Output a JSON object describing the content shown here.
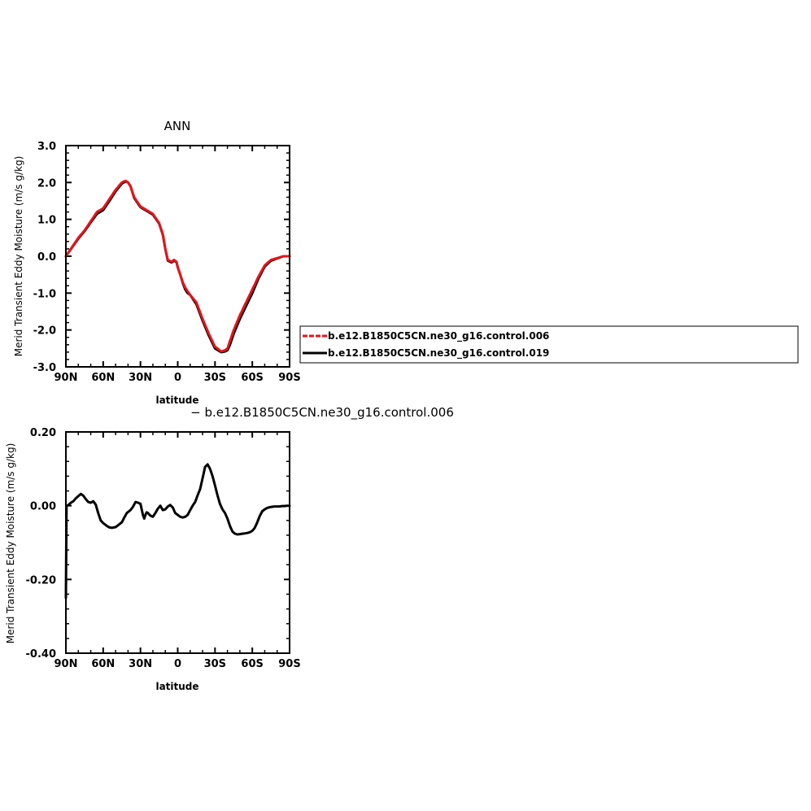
{
  "chart_data": [
    {
      "type": "line",
      "title": "ANN",
      "xlabel": "latitude",
      "ylabel": "Merid Transient Eddy Moisture (m/s g/kg)",
      "xlim": [
        -90,
        90
      ],
      "ylim": [
        -3.0,
        3.0
      ],
      "x_ticks": [
        "90N",
        "60N",
        "30N",
        "0",
        "30S",
        "60S",
        "90S"
      ],
      "y_ticks": [
        "3.0",
        "2.0",
        "1.0",
        "0.0",
        "-1.0",
        "-2.0",
        "-3.0"
      ],
      "y_tick_values": [
        3,
        2,
        1,
        0,
        -1,
        -2,
        -3
      ],
      "legend_position": "right",
      "series": [
        {
          "name": "b.e12.B1850C5CN.ne30_g16.control.006",
          "color": "#e8141b",
          "dash": true,
          "x": [
            -90,
            -85,
            -80,
            -75,
            -70,
            -65,
            -60,
            -55,
            -50,
            -45,
            -42,
            -40,
            -38,
            -35,
            -30,
            -25,
            -20,
            -15,
            -12,
            -10,
            -8,
            -5,
            -3,
            -1,
            0,
            2,
            4,
            6,
            8,
            10,
            15,
            20,
            25,
            30,
            35,
            38,
            40,
            42,
            45,
            50,
            55,
            60,
            65,
            70,
            75,
            80,
            85,
            90
          ],
          "y": [
            0.0,
            0.25,
            0.5,
            0.7,
            0.95,
            1.2,
            1.3,
            1.55,
            1.8,
            2.0,
            2.05,
            2.0,
            1.9,
            1.6,
            1.35,
            1.25,
            1.15,
            0.9,
            0.6,
            0.2,
            -0.1,
            -0.15,
            -0.1,
            -0.15,
            -0.3,
            -0.5,
            -0.7,
            -0.85,
            -0.95,
            -1.05,
            -1.25,
            -1.7,
            -2.1,
            -2.45,
            -2.58,
            -2.55,
            -2.5,
            -2.3,
            -2.0,
            -1.6,
            -1.25,
            -0.9,
            -0.55,
            -0.25,
            -0.1,
            -0.05,
            0.0,
            0.0
          ]
        },
        {
          "name": "b.e12.B1850C5CN.ne30_g16.control.019",
          "color": "#000000",
          "dash": false,
          "x": [
            -90,
            -85,
            -80,
            -75,
            -70,
            -65,
            -60,
            -55,
            -50,
            -45,
            -42,
            -40,
            -38,
            -35,
            -30,
            -25,
            -20,
            -15,
            -12,
            -10,
            -8,
            -5,
            -3,
            -1,
            0,
            2,
            4,
            6,
            8,
            10,
            15,
            20,
            25,
            30,
            35,
            38,
            40,
            42,
            45,
            50,
            55,
            60,
            65,
            70,
            75,
            80,
            85,
            90
          ],
          "y": [
            0.0,
            0.24,
            0.48,
            0.68,
            0.92,
            1.15,
            1.25,
            1.5,
            1.76,
            1.97,
            2.03,
            2.0,
            1.9,
            1.58,
            1.33,
            1.23,
            1.13,
            0.89,
            0.58,
            0.2,
            -0.12,
            -0.17,
            -0.12,
            -0.16,
            -0.3,
            -0.5,
            -0.72,
            -0.9,
            -1.0,
            -1.05,
            -1.3,
            -1.75,
            -2.15,
            -2.5,
            -2.6,
            -2.58,
            -2.55,
            -2.4,
            -2.1,
            -1.7,
            -1.35,
            -1.0,
            -0.6,
            -0.28,
            -0.12,
            -0.06,
            0.0,
            0.0
          ]
        }
      ]
    },
    {
      "type": "line",
      "title": "− b.e12.B1850C5CN.ne30_g16.control.006",
      "xlabel": "latitude",
      "ylabel": "Merid Transient Eddy Moisture (m/s g/kg)",
      "xlim": [
        -90,
        90
      ],
      "ylim": [
        -0.4,
        0.2
      ],
      "x_ticks": [
        "90N",
        "60N",
        "30N",
        "0",
        "30S",
        "60S",
        "90S"
      ],
      "y_ticks": [
        "0.20",
        "0.00",
        "-0.20",
        "-0.40"
      ],
      "y_tick_values": [
        0.2,
        0.0,
        -0.2,
        -0.4
      ],
      "series": [
        {
          "color": "#000000",
          "dash": false,
          "x": [
            -90,
            -89.5,
            -89,
            -88,
            -86,
            -84,
            -82,
            -80,
            -78,
            -76,
            -74,
            -72,
            -70,
            -68,
            -66,
            -64,
            -62,
            -60,
            -57,
            -55,
            -53,
            -50,
            -48,
            -45,
            -43,
            -41,
            -38,
            -36,
            -34,
            -32,
            -30,
            -28,
            -27,
            -26,
            -25,
            -24,
            -22,
            -20,
            -18,
            -16,
            -14,
            -12,
            -10,
            -8,
            -6,
            -4,
            -2,
            0,
            2,
            4,
            6,
            8,
            10,
            12,
            14,
            16,
            18,
            20,
            22,
            24,
            26,
            28,
            30,
            32,
            34,
            36,
            38,
            40,
            42,
            44,
            46,
            48,
            50,
            52,
            54,
            56,
            58,
            60,
            62,
            64,
            66,
            68,
            70,
            72,
            74,
            76,
            78,
            80,
            82,
            84,
            86,
            88,
            90
          ],
          "y": [
            -0.25,
            0.0,
            0.0,
            0.002,
            0.008,
            0.012,
            0.02,
            0.026,
            0.032,
            0.027,
            0.018,
            0.01,
            0.008,
            0.012,
            0.003,
            -0.02,
            -0.04,
            -0.047,
            -0.055,
            -0.059,
            -0.06,
            -0.058,
            -0.053,
            -0.045,
            -0.032,
            -0.02,
            -0.012,
            -0.003,
            0.01,
            0.008,
            0.005,
            -0.025,
            -0.035,
            -0.025,
            -0.018,
            -0.02,
            -0.027,
            -0.03,
            -0.02,
            -0.008,
            0.0,
            -0.012,
            -0.01,
            -0.002,
            0.002,
            -0.005,
            -0.02,
            -0.025,
            -0.03,
            -0.032,
            -0.03,
            -0.025,
            -0.012,
            0.0,
            0.01,
            0.028,
            0.045,
            0.075,
            0.105,
            0.112,
            0.1,
            0.08,
            0.055,
            0.028,
            0.005,
            -0.01,
            -0.02,
            -0.035,
            -0.055,
            -0.07,
            -0.076,
            -0.078,
            -0.077,
            -0.076,
            -0.075,
            -0.074,
            -0.072,
            -0.068,
            -0.06,
            -0.045,
            -0.028,
            -0.015,
            -0.01,
            -0.006,
            -0.004,
            -0.003,
            -0.002,
            -0.002,
            -0.002,
            -0.001,
            -0.001,
            0.0,
            0.0
          ]
        }
      ]
    }
  ]
}
